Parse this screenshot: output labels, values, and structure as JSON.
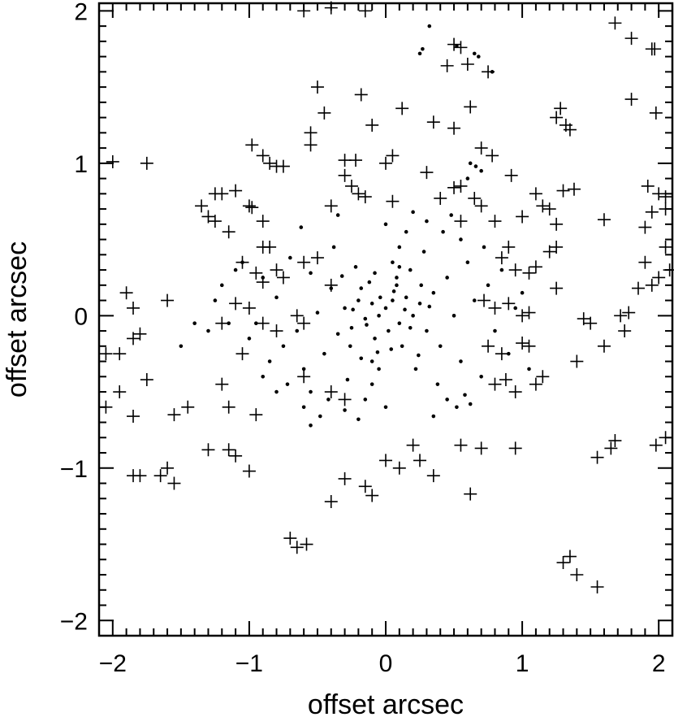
{
  "chart_data": {
    "type": "scatter",
    "title": "",
    "xlabel": "offset arcsec",
    "ylabel": "offset arcsec",
    "xlim": [
      -2.1,
      2.1
    ],
    "ylim": [
      -2.1,
      2.05
    ],
    "x_ticks": [
      -2,
      -1,
      0,
      1,
      2
    ],
    "y_ticks": [
      -2,
      -1,
      0,
      1,
      2
    ],
    "x_tick_labels": [
      "−2",
      "−1",
      "0",
      "1",
      "2"
    ],
    "y_tick_labels": [
      "−2",
      "−1",
      "0",
      "1",
      "2"
    ],
    "grid": false,
    "legend": "none",
    "series": [
      {
        "marker": "dot",
        "points": [
          [
            0.32,
            1.9
          ],
          [
            0.27,
            1.75
          ],
          [
            0.25,
            1.72
          ],
          [
            0.52,
            1.77
          ],
          [
            0.65,
            1.72
          ],
          [
            0.68,
            1.7
          ],
          [
            0.78,
            1.6
          ],
          [
            0.62,
            1.0
          ],
          [
            0.66,
            0.98
          ],
          [
            0.7,
            0.95
          ],
          [
            0.6,
            0.9
          ],
          [
            0.0,
            0.05
          ],
          [
            0.05,
            0.1
          ],
          [
            -0.05,
            0.0
          ],
          [
            0.1,
            -0.05
          ],
          [
            -0.1,
            0.08
          ],
          [
            0.15,
            0.12
          ],
          [
            -0.15,
            -0.02
          ],
          [
            0.02,
            -0.1
          ],
          [
            0.2,
            0.0
          ],
          [
            -0.2,
            0.1
          ],
          [
            0.08,
            0.2
          ],
          [
            -0.08,
            -0.15
          ],
          [
            0.25,
            0.08
          ],
          [
            -0.25,
            -0.08
          ],
          [
            0.12,
            -0.2
          ],
          [
            -0.12,
            0.22
          ],
          [
            0.3,
            -0.1
          ],
          [
            -0.3,
            0.05
          ],
          [
            0.18,
            0.3
          ],
          [
            -0.18,
            -0.28
          ],
          [
            0.35,
            0.15
          ],
          [
            -0.35,
            -0.12
          ],
          [
            0.05,
            0.35
          ],
          [
            -0.05,
            -0.35
          ],
          [
            0.4,
            -0.2
          ],
          [
            -0.4,
            0.18
          ],
          [
            0.22,
            -0.35
          ],
          [
            -0.22,
            0.32
          ],
          [
            0.45,
            0.25
          ],
          [
            -0.45,
            -0.25
          ],
          [
            0.1,
            0.45
          ],
          [
            -0.1,
            -0.45
          ],
          [
            0.5,
            0.0
          ],
          [
            -0.5,
            0.02
          ],
          [
            0.28,
            0.42
          ],
          [
            -0.28,
            -0.42
          ],
          [
            0.55,
            -0.3
          ],
          [
            -0.55,
            0.28
          ],
          [
            0.38,
            -0.45
          ],
          [
            -0.38,
            0.45
          ],
          [
            0.6,
            0.35
          ],
          [
            -0.6,
            -0.35
          ],
          [
            0.15,
            0.55
          ],
          [
            -0.15,
            -0.55
          ],
          [
            0.65,
            0.1
          ],
          [
            -0.65,
            -0.1
          ],
          [
            0.42,
            0.55
          ],
          [
            -0.42,
            -0.55
          ],
          [
            0.7,
            -0.4
          ],
          [
            -0.7,
            0.38
          ],
          [
            0.0,
            0.6
          ],
          [
            0.0,
            -0.6
          ],
          [
            0.75,
            0.2
          ],
          [
            -0.75,
            -0.2
          ],
          [
            0.3,
            0.62
          ],
          [
            -0.3,
            -0.62
          ],
          [
            0.8,
            -0.1
          ],
          [
            -0.8,
            0.12
          ],
          [
            0.55,
            0.5
          ],
          [
            -0.55,
            -0.5
          ],
          [
            0.85,
            0.3
          ],
          [
            -0.85,
            -0.3
          ],
          [
            0.2,
            0.68
          ],
          [
            -0.2,
            -0.68
          ],
          [
            0.9,
            -0.25
          ],
          [
            -0.9,
            0.25
          ],
          [
            0.62,
            -0.58
          ],
          [
            -0.62,
            0.58
          ],
          [
            0.95,
            0.05
          ],
          [
            -0.95,
            -0.05
          ],
          [
            0.48,
            0.66
          ],
          [
            -0.48,
            -0.66
          ],
          [
            1.0,
            0.15
          ],
          [
            -1.0,
            -0.15
          ],
          [
            0.72,
            0.45
          ],
          [
            -0.72,
            -0.45
          ],
          [
            0.35,
            -0.66
          ],
          [
            -0.35,
            0.66
          ],
          [
            1.05,
            -0.35
          ],
          [
            -1.05,
            0.35
          ],
          [
            0.08,
            0.25
          ],
          [
            -0.08,
            0.28
          ],
          [
            0.18,
            -0.08
          ],
          [
            -0.18,
            0.18
          ],
          [
            0.04,
            -0.22
          ],
          [
            -0.04,
            0.12
          ],
          [
            0.26,
            0.2
          ],
          [
            -0.26,
            -0.2
          ],
          [
            0.14,
            0.04
          ],
          [
            -0.14,
            -0.06
          ],
          [
            0.06,
            0.16
          ],
          [
            -0.06,
            -0.24
          ],
          [
            0.32,
            0.06
          ],
          [
            -0.32,
            0.26
          ],
          [
            0.24,
            -0.26
          ],
          [
            -0.24,
            0.04
          ],
          [
            0.1,
            0.32
          ],
          [
            -0.1,
            -0.3
          ],
          [
            -1.15,
            -0.05
          ],
          [
            -1.25,
            0.1
          ],
          [
            -1.3,
            -0.1
          ],
          [
            -1.4,
            -0.05
          ],
          [
            -1.5,
            -0.2
          ],
          [
            -1.2,
            0.2
          ],
          [
            -1.1,
            0.3
          ],
          [
            -0.9,
            -0.4
          ],
          [
            -0.8,
            -0.5
          ],
          [
            -0.6,
            -0.6
          ],
          [
            -0.55,
            -0.72
          ],
          [
            0.45,
            -0.55
          ],
          [
            0.52,
            -0.6
          ],
          [
            0.58,
            -0.52
          ]
        ]
      },
      {
        "marker": "plus",
        "points": [
          [
            -0.6,
            2.0
          ],
          [
            -0.4,
            2.02
          ],
          [
            -0.15,
            2.0
          ],
          [
            0.5,
            1.78
          ],
          [
            0.55,
            1.76
          ],
          [
            0.45,
            1.64
          ],
          [
            0.6,
            1.65
          ],
          [
            0.75,
            1.6
          ],
          [
            1.68,
            1.92
          ],
          [
            1.8,
            1.82
          ],
          [
            1.95,
            1.75
          ],
          [
            1.97,
            1.75
          ],
          [
            -0.5,
            1.5
          ],
          [
            -0.18,
            1.45
          ],
          [
            -0.45,
            1.33
          ],
          [
            -0.1,
            1.25
          ],
          [
            0.12,
            1.36
          ],
          [
            0.35,
            1.27
          ],
          [
            0.5,
            1.23
          ],
          [
            0.62,
            1.37
          ],
          [
            1.28,
            1.36
          ],
          [
            1.25,
            1.3
          ],
          [
            1.32,
            1.25
          ],
          [
            1.35,
            1.22
          ],
          [
            1.8,
            1.42
          ],
          [
            1.98,
            1.33
          ],
          [
            -0.55,
            1.2
          ],
          [
            -0.55,
            1.12
          ],
          [
            -0.98,
            1.12
          ],
          [
            -0.9,
            1.05
          ],
          [
            -0.85,
            1.0
          ],
          [
            -0.8,
            0.98
          ],
          [
            -0.75,
            0.98
          ],
          [
            -2.0,
            1.01
          ],
          [
            -1.75,
            1.0
          ],
          [
            -0.3,
            1.02
          ],
          [
            -0.22,
            1.02
          ],
          [
            0.0,
            1.0
          ],
          [
            0.05,
            1.05
          ],
          [
            0.3,
            0.94
          ],
          [
            0.7,
            1.1
          ],
          [
            0.78,
            1.05
          ],
          [
            0.92,
            0.92
          ],
          [
            -0.3,
            0.92
          ],
          [
            -0.25,
            0.85
          ],
          [
            -0.2,
            0.8
          ],
          [
            -0.15,
            0.78
          ],
          [
            -1.35,
            0.72
          ],
          [
            -1.25,
            0.8
          ],
          [
            -1.2,
            0.8
          ],
          [
            -1.1,
            0.82
          ],
          [
            -1.0,
            0.72
          ],
          [
            -0.98,
            0.71
          ],
          [
            -0.4,
            0.72
          ],
          [
            0.05,
            0.75
          ],
          [
            0.4,
            0.77
          ],
          [
            0.5,
            0.84
          ],
          [
            0.55,
            0.85
          ],
          [
            0.65,
            0.77
          ],
          [
            0.7,
            0.72
          ],
          [
            1.1,
            0.8
          ],
          [
            1.15,
            0.72
          ],
          [
            1.2,
            0.7
          ],
          [
            1.3,
            0.82
          ],
          [
            1.38,
            0.83
          ],
          [
            1.92,
            0.85
          ],
          [
            2.0,
            0.8
          ],
          [
            2.05,
            0.78
          ],
          [
            -1.3,
            0.65
          ],
          [
            -1.25,
            0.62
          ],
          [
            -1.15,
            0.55
          ],
          [
            -0.9,
            0.62
          ],
          [
            0.55,
            0.62
          ],
          [
            0.8,
            0.62
          ],
          [
            1.0,
            0.65
          ],
          [
            1.25,
            0.6
          ],
          [
            1.6,
            0.63
          ],
          [
            1.95,
            0.68
          ],
          [
            1.9,
            0.58
          ],
          [
            2.05,
            0.7
          ],
          [
            -0.9,
            0.45
          ],
          [
            -0.85,
            0.45
          ],
          [
            -1.05,
            0.35
          ],
          [
            -0.95,
            0.28
          ],
          [
            -0.9,
            0.22
          ],
          [
            -0.8,
            0.3
          ],
          [
            -0.75,
            0.25
          ],
          [
            -0.6,
            0.35
          ],
          [
            -0.5,
            0.38
          ],
          [
            -0.4,
            0.2
          ],
          [
            0.9,
            0.45
          ],
          [
            0.85,
            0.38
          ],
          [
            0.95,
            0.3
          ],
          [
            1.05,
            0.28
          ],
          [
            1.1,
            0.32
          ],
          [
            1.2,
            0.42
          ],
          [
            1.25,
            0.45
          ],
          [
            1.9,
            0.35
          ],
          [
            2.05,
            0.45
          ],
          [
            2.08,
            0.3
          ],
          [
            -1.9,
            0.15
          ],
          [
            -1.85,
            0.05
          ],
          [
            -1.6,
            0.1
          ],
          [
            -1.1,
            0.08
          ],
          [
            -1.0,
            0.05
          ],
          [
            -0.65,
            0.0
          ],
          [
            -0.6,
            -0.05
          ],
          [
            0.72,
            0.1
          ],
          [
            0.8,
            0.05
          ],
          [
            0.9,
            0.08
          ],
          [
            1.0,
            0.0
          ],
          [
            1.05,
            0.02
          ],
          [
            1.25,
            0.18
          ],
          [
            1.45,
            -0.02
          ],
          [
            1.5,
            -0.05
          ],
          [
            1.72,
            0.0
          ],
          [
            1.78,
            0.02
          ],
          [
            1.85,
            0.18
          ],
          [
            1.95,
            0.2
          ],
          [
            2.0,
            0.25
          ],
          [
            -2.05,
            -0.25
          ],
          [
            -1.95,
            -0.25
          ],
          [
            -1.85,
            -0.15
          ],
          [
            -1.8,
            -0.12
          ],
          [
            -1.2,
            -0.05
          ],
          [
            -1.05,
            -0.25
          ],
          [
            -0.9,
            -0.05
          ],
          [
            -0.8,
            -0.1
          ],
          [
            0.75,
            -0.2
          ],
          [
            0.85,
            -0.25
          ],
          [
            1.0,
            -0.18
          ],
          [
            1.05,
            -0.2
          ],
          [
            1.6,
            -0.2
          ],
          [
            1.75,
            -0.1
          ],
          [
            -2.05,
            -0.6
          ],
          [
            -1.95,
            -0.5
          ],
          [
            -1.75,
            -0.42
          ],
          [
            -1.85,
            -0.66
          ],
          [
            -1.55,
            -0.65
          ],
          [
            -1.45,
            -0.6
          ],
          [
            -1.2,
            -0.45
          ],
          [
            -1.15,
            -0.6
          ],
          [
            -0.95,
            -0.65
          ],
          [
            -0.6,
            -0.4
          ],
          [
            -0.4,
            -0.5
          ],
          [
            -0.3,
            -0.55
          ],
          [
            0.8,
            -0.45
          ],
          [
            0.88,
            -0.42
          ],
          [
            0.95,
            -0.5
          ],
          [
            1.1,
            -0.45
          ],
          [
            1.15,
            -0.4
          ],
          [
            1.4,
            -0.3
          ],
          [
            -1.85,
            -1.05
          ],
          [
            -1.8,
            -1.05
          ],
          [
            -1.6,
            -1.0
          ],
          [
            -1.65,
            -1.05
          ],
          [
            -1.55,
            -1.1
          ],
          [
            -1.3,
            -0.88
          ],
          [
            -1.15,
            -0.88
          ],
          [
            -1.1,
            -0.92
          ],
          [
            -1.0,
            -1.02
          ],
          [
            -0.3,
            -1.07
          ],
          [
            -0.15,
            -1.12
          ],
          [
            -0.1,
            -1.18
          ],
          [
            0.0,
            -0.95
          ],
          [
            0.1,
            -1.0
          ],
          [
            0.25,
            -0.95
          ],
          [
            0.35,
            -1.05
          ],
          [
            0.2,
            -0.85
          ],
          [
            0.55,
            -0.85
          ],
          [
            0.7,
            -0.87
          ],
          [
            0.95,
            -0.87
          ],
          [
            1.55,
            -0.93
          ],
          [
            1.65,
            -0.87
          ],
          [
            1.68,
            -0.82
          ],
          [
            1.98,
            -0.85
          ],
          [
            2.05,
            -0.8
          ],
          [
            -0.4,
            -1.22
          ],
          [
            0.62,
            -1.17
          ],
          [
            -0.7,
            -1.46
          ],
          [
            -0.65,
            -1.52
          ],
          [
            -0.58,
            -1.5
          ],
          [
            1.3,
            -1.62
          ],
          [
            1.35,
            -1.58
          ],
          [
            1.4,
            -1.7
          ],
          [
            1.55,
            -1.78
          ]
        ]
      }
    ]
  }
}
